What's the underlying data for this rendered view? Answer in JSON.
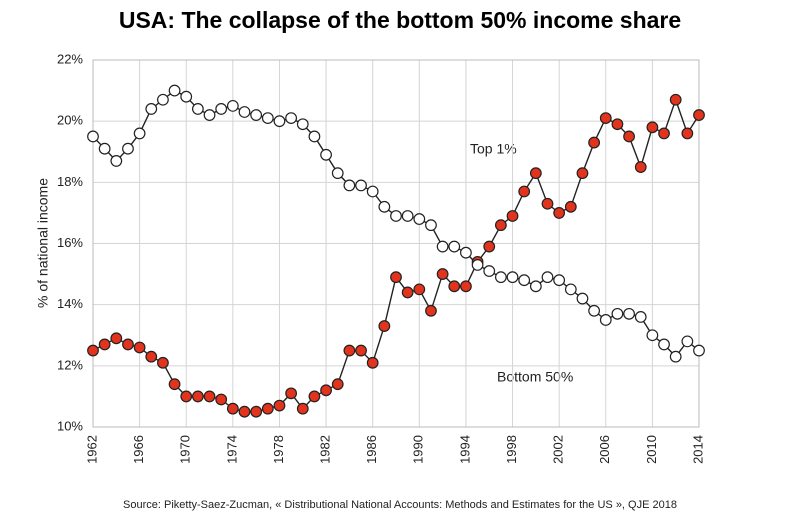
{
  "chart_data": {
    "type": "line",
    "title": "USA: The collapse of the bottom 50% income share",
    "y_label": "% of national income",
    "source": "Source: Piketty-Saez-Zucman, « Distributional National Accounts: Methods and Estimates for the US », QJE 2018",
    "x": [
      1962,
      1963,
      1964,
      1965,
      1966,
      1967,
      1968,
      1969,
      1970,
      1971,
      1972,
      1973,
      1974,
      1975,
      1976,
      1977,
      1978,
      1979,
      1980,
      1981,
      1982,
      1983,
      1984,
      1985,
      1986,
      1987,
      1988,
      1989,
      1990,
      1991,
      1992,
      1993,
      1994,
      1995,
      1996,
      1997,
      1998,
      1999,
      2000,
      2001,
      2002,
      2003,
      2004,
      2005,
      2006,
      2007,
      2008,
      2009,
      2010,
      2011,
      2012,
      2013,
      2014
    ],
    "series": [
      {
        "name": "Top 1%",
        "color": "#e2341d",
        "values": [
          12.5,
          12.7,
          12.9,
          12.7,
          12.6,
          12.3,
          12.1,
          11.4,
          11.0,
          11.0,
          11.0,
          10.9,
          10.6,
          10.5,
          10.5,
          10.6,
          10.7,
          11.1,
          10.6,
          11.0,
          11.2,
          11.4,
          12.5,
          12.5,
          12.1,
          13.3,
          14.9,
          14.4,
          14.5,
          13.8,
          15.0,
          14.6,
          14.6,
          15.4,
          15.9,
          16.6,
          16.9,
          17.7,
          18.3,
          17.3,
          17.0,
          17.2,
          18.3,
          19.3,
          20.1,
          19.9,
          19.5,
          18.5,
          19.8,
          19.6,
          20.7,
          19.6,
          20.2
        ]
      },
      {
        "name": "Bottom 50%",
        "color": "#ffffff",
        "values": [
          19.5,
          19.1,
          18.7,
          19.1,
          19.6,
          20.4,
          20.7,
          21.0,
          20.8,
          20.4,
          20.2,
          20.4,
          20.5,
          20.3,
          20.2,
          20.1,
          20.0,
          20.1,
          19.9,
          19.5,
          18.9,
          18.3,
          17.9,
          17.9,
          17.7,
          17.2,
          16.9,
          16.9,
          16.8,
          16.6,
          15.9,
          15.9,
          15.7,
          15.3,
          15.1,
          14.9,
          14.9,
          14.8,
          14.6,
          14.9,
          14.8,
          14.5,
          14.2,
          13.8,
          13.5,
          13.7,
          13.7,
          13.6,
          13.0,
          12.7,
          12.3,
          12.8,
          12.5
        ]
      }
    ],
    "xlim": [
      1962,
      2014
    ],
    "xticks": [
      1962,
      1966,
      1970,
      1974,
      1978,
      1982,
      1986,
      1990,
      1994,
      1998,
      2002,
      2006,
      2010,
      2014
    ],
    "ylim": [
      10,
      22
    ],
    "yticks": [
      {
        "value": 10,
        "label": "10%"
      },
      {
        "value": 12,
        "label": "12%"
      },
      {
        "value": 14,
        "label": "14%"
      },
      {
        "value": 16,
        "label": "16%"
      },
      {
        "value": 18,
        "label": "18%"
      },
      {
        "value": 20,
        "label": "20%"
      },
      {
        "value": 22,
        "label": "22%"
      }
    ],
    "grid": true
  }
}
